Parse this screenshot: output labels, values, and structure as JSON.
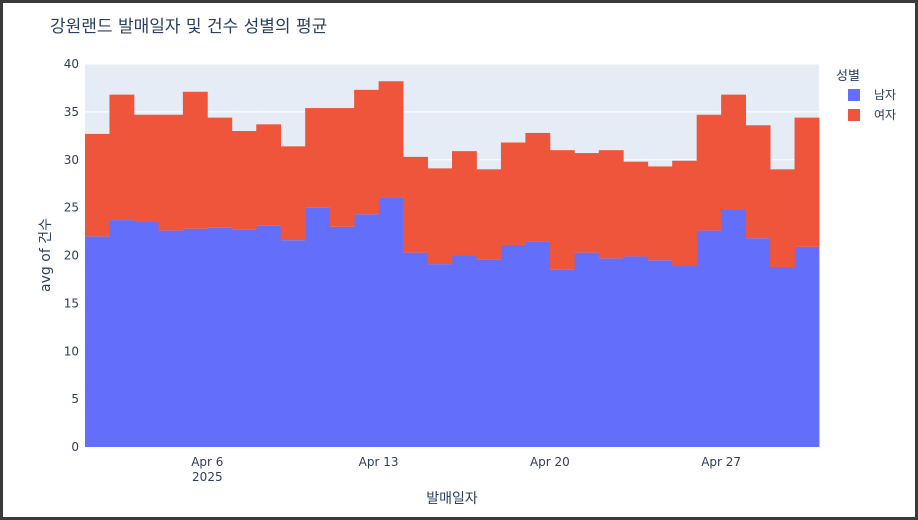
{
  "chart_data": {
    "type": "bar",
    "barmode": "stack",
    "title": "강원랜드 발매일자 및 건수 성별의 평균",
    "xlabel": "발매일자",
    "ylabel": "avg of 건수",
    "ylim": [
      0,
      40
    ],
    "yticks": [
      "0",
      "5",
      "10",
      "15",
      "20",
      "25",
      "30",
      "35",
      "40"
    ],
    "xticks": [
      {
        "date": "2025-04-06",
        "label": "Apr 6",
        "sublabel": "2025"
      },
      {
        "date": "2025-04-13",
        "label": "Apr 13",
        "sublabel": ""
      },
      {
        "date": "2025-04-20",
        "label": "Apr 20",
        "sublabel": ""
      },
      {
        "date": "2025-04-27",
        "label": "Apr 27",
        "sublabel": ""
      }
    ],
    "legend_title": "성별",
    "legend_position": "top-right",
    "grid": true,
    "categories": [
      "2025-04-01",
      "2025-04-02",
      "2025-04-03",
      "2025-04-04",
      "2025-04-05",
      "2025-04-06",
      "2025-04-07",
      "2025-04-08",
      "2025-04-09",
      "2025-04-10",
      "2025-04-11",
      "2025-04-12",
      "2025-04-13",
      "2025-04-14",
      "2025-04-15",
      "2025-04-16",
      "2025-04-17",
      "2025-04-18",
      "2025-04-19",
      "2025-04-20",
      "2025-04-21",
      "2025-04-22",
      "2025-04-23",
      "2025-04-24",
      "2025-04-25",
      "2025-04-26",
      "2025-04-27",
      "2025-04-28",
      "2025-04-29",
      "2025-04-30"
    ],
    "series": [
      {
        "name": "남자",
        "color": "#636efa",
        "values": [
          22.0,
          23.7,
          23.5,
          22.6,
          22.8,
          22.9,
          22.7,
          23.1,
          21.6,
          25.0,
          23.0,
          24.3,
          26.1,
          20.3,
          19.1,
          20.0,
          19.6,
          21.1,
          21.5,
          18.5,
          20.3,
          19.7,
          19.9,
          19.5,
          18.9,
          22.6,
          24.8,
          21.8,
          18.8,
          20.9
        ]
      },
      {
        "name": "여자",
        "color": "#ef553b",
        "values": [
          10.7,
          13.1,
          11.2,
          12.1,
          14.3,
          11.5,
          10.3,
          10.6,
          9.8,
          10.4,
          12.4,
          13.0,
          12.1,
          10.0,
          10.0,
          10.9,
          9.4,
          10.7,
          11.3,
          12.5,
          10.4,
          11.3,
          9.9,
          9.8,
          11.0,
          12.1,
          12.0,
          11.8,
          10.2,
          13.5
        ]
      }
    ]
  }
}
